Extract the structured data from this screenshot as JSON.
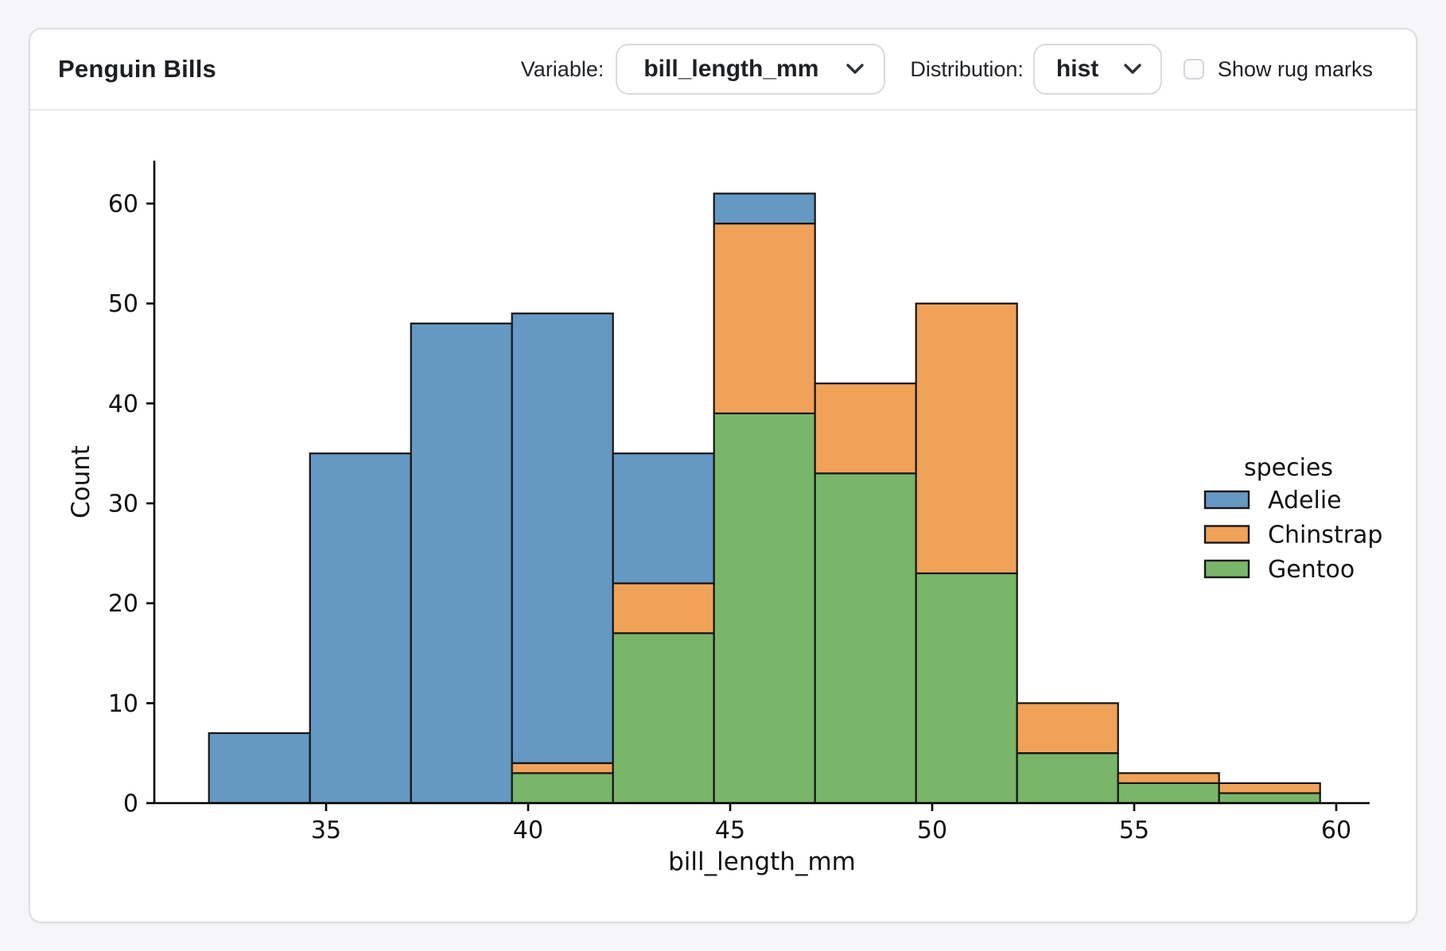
{
  "header": {
    "title": "Penguin Bills",
    "variable_label": "Variable:",
    "variable_value": "bill_length_mm",
    "distribution_label": "Distribution:",
    "distribution_value": "hist",
    "rug_label": "Show rug marks",
    "rug_checked": false
  },
  "chart_data": {
    "type": "bar",
    "subtype": "stacked-histogram",
    "title": "",
    "xlabel": "bill_length_mm",
    "ylabel": "Count",
    "bin_edges": [
      32.1,
      34.6,
      37.1,
      39.6,
      42.1,
      44.6,
      47.1,
      49.6,
      52.1,
      54.6,
      57.1,
      59.6
    ],
    "series": [
      {
        "name": "Adelie",
        "color": "#6598c3",
        "values": [
          7,
          35,
          48,
          45,
          13,
          3,
          0,
          0,
          0,
          0,
          0
        ]
      },
      {
        "name": "Chinstrap",
        "color": "#f0a259",
        "values": [
          0,
          0,
          0,
          1,
          5,
          19,
          9,
          27,
          5,
          1,
          1
        ]
      },
      {
        "name": "Gentoo",
        "color": "#79b669",
        "values": [
          0,
          0,
          0,
          3,
          17,
          39,
          33,
          23,
          5,
          2,
          1
        ]
      }
    ],
    "stack_order_bottom_to_top": [
      "Gentoo",
      "Chinstrap",
      "Adelie"
    ],
    "bin_totals": [
      7,
      35,
      48,
      49,
      35,
      61,
      42,
      50,
      10,
      3,
      2
    ],
    "x_ticks": [
      35,
      40,
      45,
      50,
      55,
      60
    ],
    "y_ticks": [
      0,
      10,
      20,
      30,
      40,
      50,
      60
    ],
    "xlim": [
      31.2,
      60.9
    ],
    "ylim": [
      0,
      64
    ],
    "legend_title": "species",
    "legend_position": "right",
    "grid": false,
    "bar_edge_color": "#151515"
  }
}
